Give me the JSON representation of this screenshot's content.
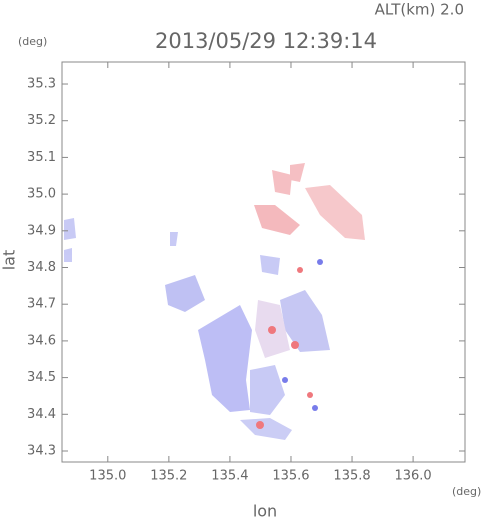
{
  "chart_data": {
    "type": "map",
    "title": "2013/05/29 12:39:14",
    "annotation": "ALT(km) 2.0",
    "x_unit": "(deg)",
    "y_unit": "(deg)",
    "xlabel": "lon",
    "ylabel": "lat",
    "xlim": [
      134.85,
      136.17
    ],
    "ylim": [
      34.27,
      35.36
    ],
    "xticks": [
      {
        "value": 135,
        "label": "135.0"
      },
      135.2,
      135.4,
      135.6,
      135.8,
      {
        "value": 136,
        "label": "136.0"
      }
    ],
    "yticks": [
      {
        "value": 34.3,
        "label": "34.3"
      },
      34.4,
      34.5,
      34.6,
      34.7,
      34.8,
      34.9,
      {
        "value": 35,
        "label": "35.0"
      },
      35.1,
      35.2,
      35.3
    ]
  }
}
